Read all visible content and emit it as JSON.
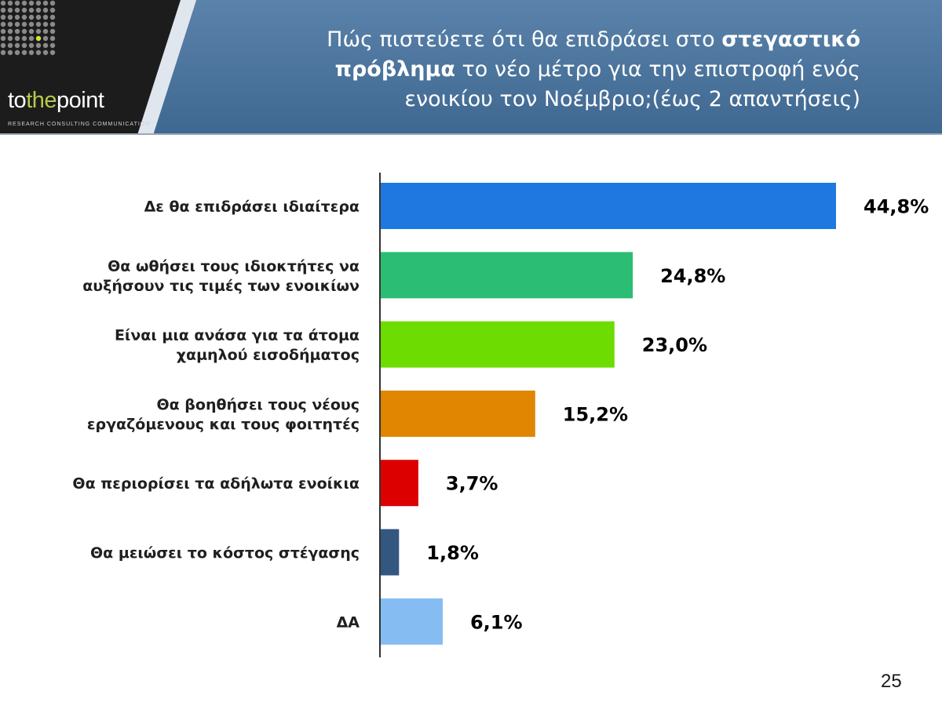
{
  "header": {
    "brand_prefix": "to",
    "brand_middle": "the",
    "brand_suffix": "point",
    "tagline": "RESEARCH  CONSULTING  COMMUNICATION",
    "title_part1": "Πώς πιστεύετε ότι θα επιδράσει στο ",
    "title_bold": "στεγαστικό πρόβλημα",
    "title_part2": " το νέο μέτρο για την επιστροφή ενός ενοικίου τον Νοέμβριο;(έως 2 απαντήσεις)",
    "colors": {
      "title_bar": "#4a6f96",
      "logo_bg": "#1c1c1c",
      "accent": "#b9c84a"
    }
  },
  "chart_data": {
    "type": "bar",
    "orientation": "horizontal",
    "categories": [
      [
        "Δε θα επιδράσει ιδιαίτερα"
      ],
      [
        "Θα ωθήσει τους ιδιοκτήτες να",
        "αυξήσουν τις τιμές των ενοικίων"
      ],
      [
        "Είναι μια ανάσα για τα άτομα",
        "χαμηλού εισοδήματος"
      ],
      [
        "Θα βοηθήσει τους νέους",
        "εργαζόμενους και τους φοιτητές"
      ],
      [
        "Θα περιορίσει τα αδήλωτα ενοίκια"
      ],
      [
        "Θα μειώσει το κόστος στέγασης"
      ],
      [
        "ΔΑ"
      ]
    ],
    "values": [
      44.8,
      24.8,
      23.0,
      15.2,
      3.7,
      1.8,
      6.1
    ],
    "value_labels": [
      "44,8%",
      "24,8%",
      "23,0%",
      "15,2%",
      "3,7%",
      "1,8%",
      "6,1%"
    ],
    "colors": [
      "#1f78e0",
      "#2bbd74",
      "#6ddc00",
      "#e08600",
      "#dd0000",
      "#34577f",
      "#85bdf2"
    ],
    "xlim": [
      0,
      44.8
    ],
    "grid": false,
    "legend": "none"
  },
  "page_number": "25"
}
